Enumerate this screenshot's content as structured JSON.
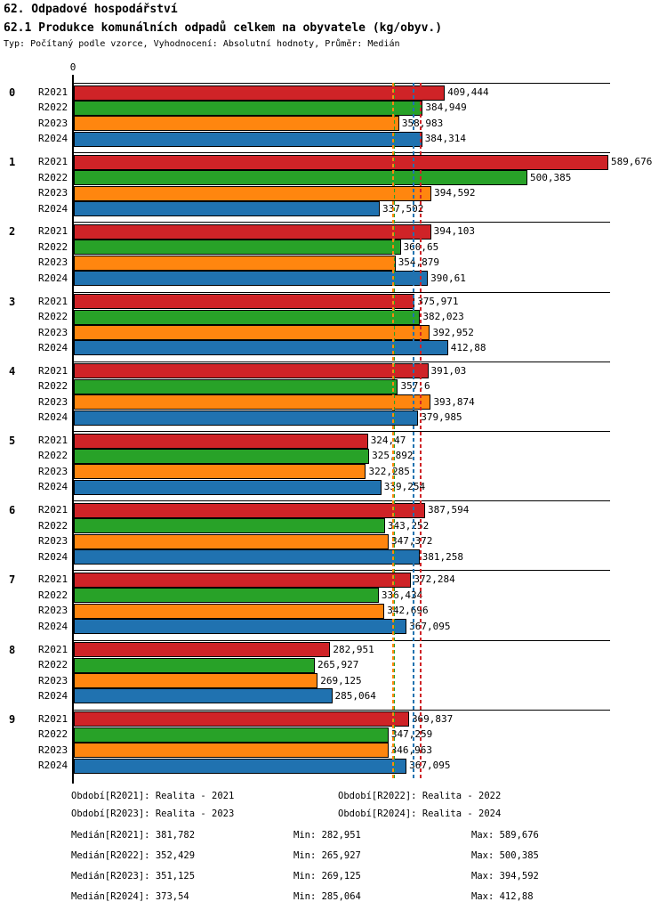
{
  "header": {
    "title1": "62. Odpadové hospodářství",
    "title2": "62.1 Produkce komunálních odpadů celkem na obyvatele (kg/obyv.)",
    "subtitle": "Typ: Počítaný podle vzorce, Vyhodnocení: Absolutní hodnoty, Průměr: Medián"
  },
  "chart_data": {
    "type": "bar",
    "orientation": "horizontal",
    "unit": "kg/obyv.",
    "decimal_separator": ",",
    "axis": {
      "zero_label": "0",
      "x_min": 0,
      "x_max": 589.676
    },
    "series": [
      {
        "name": "R2021",
        "color": "#cf2327"
      },
      {
        "name": "R2022",
        "color": "#28a228"
      },
      {
        "name": "R2023",
        "color": "#ff860f"
      },
      {
        "name": "R2024",
        "color": "#2072b0"
      }
    ],
    "groups": [
      {
        "label": "0",
        "values": [
          "409,444",
          "384,949",
          "358,983",
          "384,314"
        ]
      },
      {
        "label": "1",
        "values": [
          "589,676",
          "500,385",
          "394,592",
          "337,502"
        ]
      },
      {
        "label": "2",
        "values": [
          "394,103",
          "360,65",
          "354,879",
          "390,61"
        ]
      },
      {
        "label": "3",
        "values": [
          "375,971",
          "382,023",
          "392,952",
          "412,88"
        ]
      },
      {
        "label": "4",
        "values": [
          "391,03",
          "357,6",
          "393,874",
          "379,985"
        ]
      },
      {
        "label": "5",
        "values": [
          "324,47",
          "325,892",
          "322,285",
          "339,254"
        ]
      },
      {
        "label": "6",
        "values": [
          "387,594",
          "343,252",
          "347,372",
          "381,258"
        ]
      },
      {
        "label": "7",
        "values": [
          "372,284",
          "336,434",
          "342,696",
          "367,095"
        ]
      },
      {
        "label": "8",
        "values": [
          "282,951",
          "265,927",
          "269,125",
          "285,064"
        ]
      },
      {
        "label": "9",
        "values": [
          "369,837",
          "347,259",
          "346,963",
          "367,095"
        ]
      }
    ],
    "median_lines": [
      {
        "series": "R2021",
        "value": "381,782",
        "color": "#cf2327"
      },
      {
        "series": "R2022",
        "value": "352,429",
        "color": "#28a228"
      },
      {
        "series": "R2023",
        "value": "351,125",
        "color": "#ff860f"
      },
      {
        "series": "R2024",
        "value": "373,54",
        "color": "#2072b0"
      }
    ],
    "legend_position": "bottom",
    "grid": false
  },
  "legend": {
    "items": [
      "Období[R2021]: Realita - 2021",
      "Období[R2022]: Realita - 2022",
      "Období[R2023]: Realita - 2023",
      "Období[R2024]: Realita - 2024"
    ]
  },
  "stats": {
    "rows": [
      {
        "median": "Medián[R2021]: 381,782",
        "min": "Min: 282,951",
        "max": "Max: 589,676"
      },
      {
        "median": "Medián[R2022]: 352,429",
        "min": "Min: 265,927",
        "max": "Max: 500,385"
      },
      {
        "median": "Medián[R2023]: 351,125",
        "min": "Min: 269,125",
        "max": "Max: 394,592"
      },
      {
        "median": "Medián[R2024]: 373,54",
        "min": "Min: 285,064",
        "max": "Max: 412,88"
      }
    ]
  }
}
